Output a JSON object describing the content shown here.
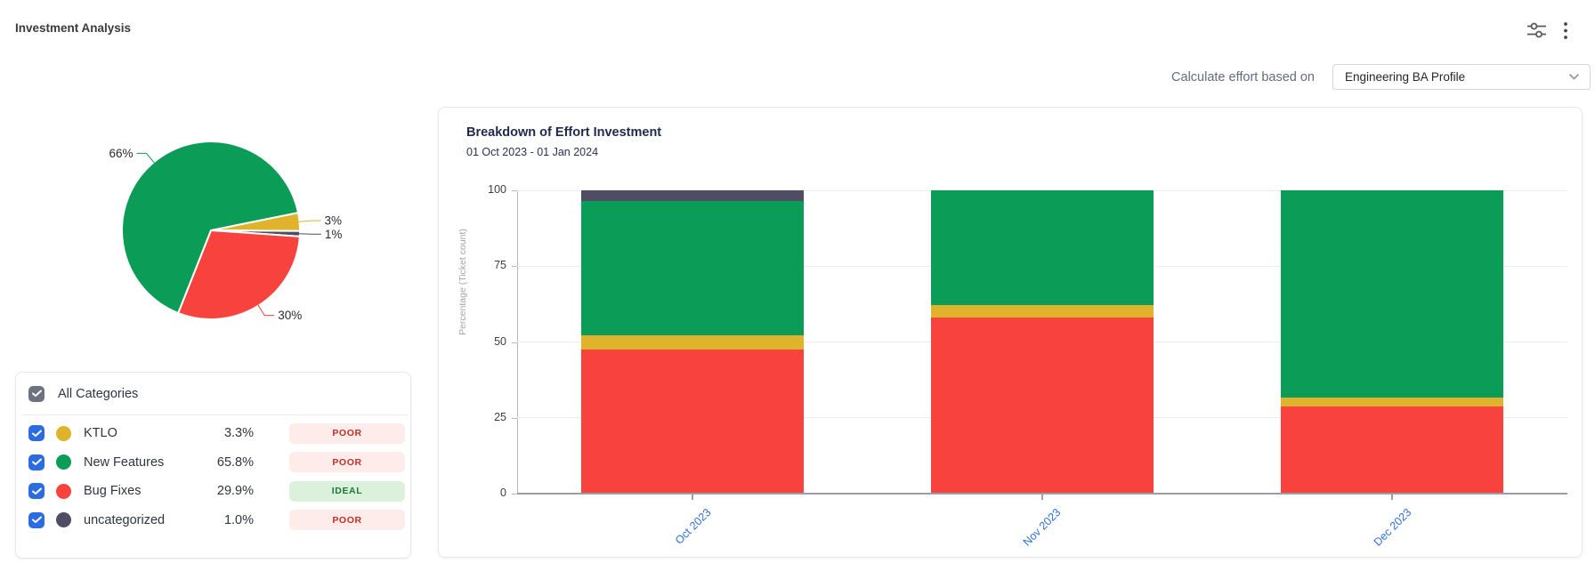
{
  "header": {
    "title": "Investment Analysis"
  },
  "toolbar_icons": [
    "filter-sliders-icon",
    "kebab-menu-icon"
  ],
  "controls": {
    "label": "Calculate effort based on",
    "value": "Engineering BA Profile",
    "icon": "chevron-down-icon"
  },
  "categories_panel": {
    "all_label": "All Categories",
    "all_checked": true,
    "rows": [
      {
        "name": "KTLO",
        "percent": "3.3%",
        "status": "POOR",
        "status_type": "poor",
        "color": "#dfb32b",
        "checked": true
      },
      {
        "name": "New Features",
        "percent": "65.8%",
        "status": "POOR",
        "status_type": "poor",
        "color": "#0b9c57",
        "checked": true
      },
      {
        "name": "Bug Fixes",
        "percent": "29.9%",
        "status": "IDEAL",
        "status_type": "ideal",
        "color": "#f8423d",
        "checked": true
      },
      {
        "name": "uncategorized",
        "percent": "1.0%",
        "status": "POOR",
        "status_type": "poor",
        "color": "#4e4d63",
        "checked": true
      }
    ]
  },
  "colors": {
    "checkbox_blue": "#2b6ce0",
    "checkbox_gray": "#6c7280",
    "link_blue": "#2f6fdb",
    "poor_bg": "#fdecea",
    "poor_text": "#c12e26",
    "ideal_bg": "#dcf1dc",
    "ideal_text": "#1b7a33"
  },
  "chart_data": [
    {
      "type": "pie",
      "start_angle_deg": 78.5,
      "slices": [
        {
          "name": "KTLO",
          "value": 3.3,
          "label": "3%",
          "color": "#dfb32b"
        },
        {
          "name": "uncategorized",
          "value": 1.0,
          "label": "1%",
          "color": "#4e4d63"
        },
        {
          "name": "Bug Fixes",
          "value": 29.9,
          "label": "30%",
          "color": "#f8423d"
        },
        {
          "name": "New Features",
          "value": 65.8,
          "label": "66%",
          "color": "#0b9c57"
        }
      ]
    },
    {
      "type": "bar",
      "stacked": true,
      "title": "Breakdown of Effort Investment",
      "subtitle": "01 Oct 2023 - 01 Jan 2024",
      "ylabel": "Percentage (Ticket count)",
      "ylim": [
        0,
        100
      ],
      "yticks": [
        0,
        25,
        50,
        75,
        100
      ],
      "grid": true,
      "categories": [
        "Oct 2023",
        "Nov 2023",
        "Dec 2023"
      ],
      "series": [
        {
          "name": "Bug Fixes",
          "color": "#f8423d",
          "values": [
            47.6,
            58.2,
            28.8
          ]
        },
        {
          "name": "KTLO",
          "color": "#dfb32b",
          "values": [
            4.7,
            3.9,
            2.9
          ]
        },
        {
          "name": "New Features",
          "color": "#0b9c57",
          "values": [
            44.2,
            37.9,
            68.3
          ]
        },
        {
          "name": "uncategorized",
          "color": "#4e4d63",
          "values": [
            3.5,
            0,
            0
          ]
        }
      ]
    }
  ]
}
